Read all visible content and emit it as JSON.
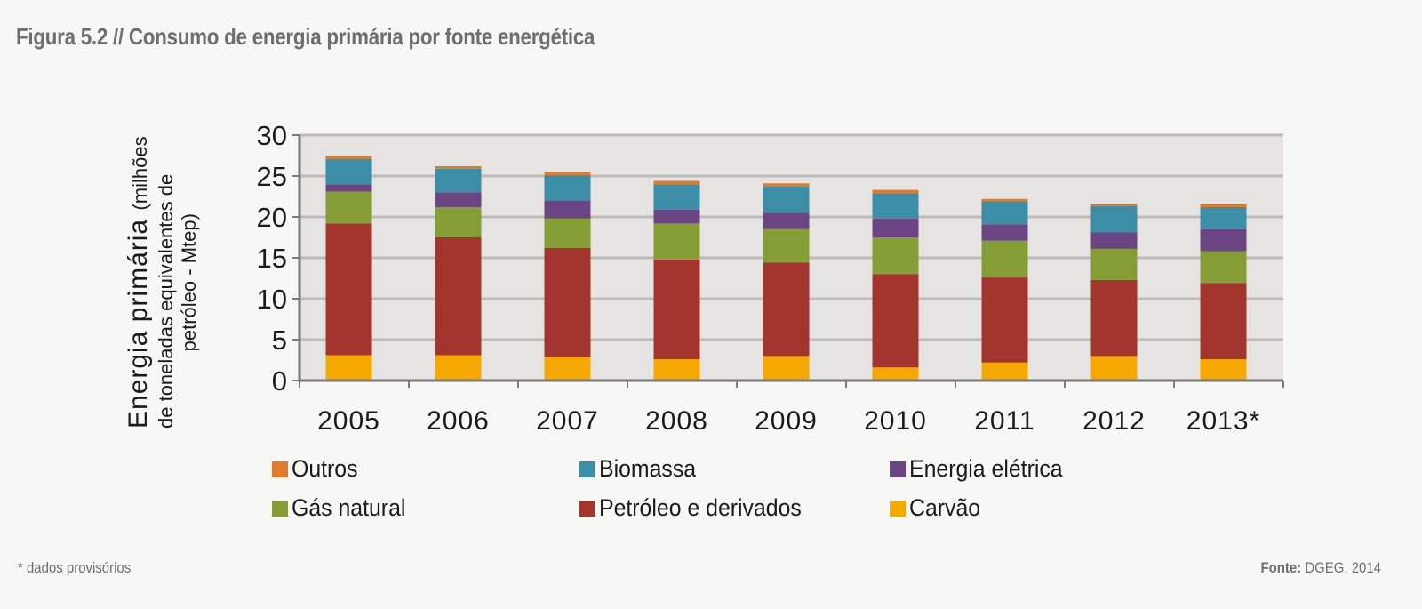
{
  "figure": {
    "title": "Figura 5.2 // Consumo de energia primária por fonte energética",
    "footnote": "* dados provisórios",
    "source_label": "Fonte:",
    "source_value": " DGEG, 2014"
  },
  "chart_data": {
    "type": "bar",
    "stacked": true,
    "title": "Figura 5.2 // Consumo de energia primária por fonte energética",
    "xlabel": "",
    "ylabel": "Energia primária (milhões de toneladas equivalentes de petróleo - Mtep)",
    "ylabel_parts": {
      "main": "Energia primária",
      "paren_line1": "(milhões",
      "line2": "de toneladas equivalentes de",
      "line3": "petróleo - Mtep)"
    },
    "ylim": [
      0,
      30
    ],
    "yticks": [
      0,
      5,
      10,
      15,
      20,
      25,
      30
    ],
    "grid": true,
    "legend_position": "bottom",
    "categories": [
      "2005",
      "2006",
      "2007",
      "2008",
      "2009",
      "2010",
      "2011",
      "2012",
      "2013*"
    ],
    "series": [
      {
        "name": "Carvão",
        "color": "#f5a800",
        "values": [
          3.1,
          3.1,
          2.9,
          2.6,
          3.0,
          1.6,
          2.2,
          3.0,
          2.6
        ]
      },
      {
        "name": "Petróleo e derivados",
        "color": "#a3342e",
        "values": [
          16.1,
          14.4,
          13.3,
          12.2,
          11.4,
          11.4,
          10.4,
          9.3,
          9.3
        ]
      },
      {
        "name": "Gás natural",
        "color": "#859d35",
        "values": [
          3.9,
          3.7,
          3.6,
          4.4,
          4.1,
          4.5,
          4.5,
          3.8,
          3.9
        ]
      },
      {
        "name": "Energia elétrica",
        "color": "#6b4482",
        "values": [
          0.9,
          1.8,
          2.2,
          1.7,
          2.0,
          2.3,
          2.0,
          2.0,
          2.7
        ]
      },
      {
        "name": "Biomassa",
        "color": "#3b8ea6",
        "values": [
          3.1,
          2.9,
          3.1,
          3.1,
          3.2,
          3.1,
          2.8,
          3.2,
          2.7
        ]
      },
      {
        "name": "Outros",
        "color": "#e07b2c",
        "values": [
          0.4,
          0.3,
          0.4,
          0.4,
          0.4,
          0.4,
          0.3,
          0.3,
          0.4
        ]
      }
    ],
    "legend_order": [
      "Outros",
      "Biomassa",
      "Energia elétrica",
      "Gás natural",
      "Petróleo e derivados",
      "Carvão"
    ]
  }
}
